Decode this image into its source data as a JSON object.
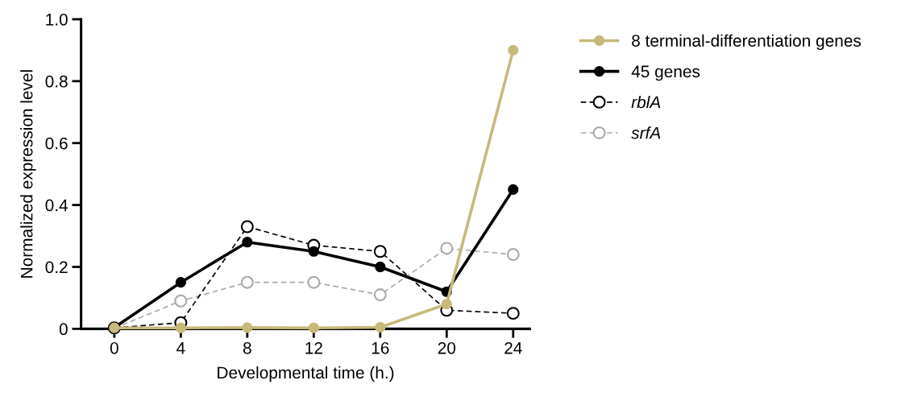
{
  "chart_data": {
    "type": "line",
    "xlabel": "Developmental time (h.)",
    "ylabel": "Normalized expression level",
    "x": [
      0,
      4,
      8,
      12,
      16,
      20,
      24
    ],
    "series": [
      {
        "name": "8 terminal-differentiation genes",
        "color": "#c8b97a",
        "values": [
          0.003,
          0.003,
          0.004,
          0.003,
          0.005,
          0.08,
          0.9
        ],
        "marker": "circle",
        "line_style": "solid"
      },
      {
        "name": "45 genes",
        "color": "#000000",
        "values": [
          0.004,
          0.15,
          0.28,
          0.25,
          0.2,
          0.12,
          0.45
        ],
        "marker": "circle",
        "line_style": "solid"
      },
      {
        "name": "rblA",
        "color": "#000000",
        "values": [
          0.003,
          0.02,
          0.33,
          0.27,
          0.25,
          0.06,
          0.05
        ],
        "marker": "circle",
        "line_style": "dashed"
      },
      {
        "name": "srfA",
        "color": "#aaaaaa",
        "values": [
          0.002,
          0.09,
          0.15,
          0.15,
          0.11,
          0.26,
          0.24
        ],
        "marker": "circle",
        "line_style": "dashed"
      }
    ],
    "xlim": [
      -2,
      25
    ],
    "xticks": [
      0,
      4,
      8,
      12,
      16,
      20,
      24
    ],
    "ylim": [
      0,
      1.0
    ],
    "yticks": [
      0,
      0.2,
      0.4,
      0.6,
      0.8,
      {
        "value": 1.0,
        "label": "1.0"
      }
    ],
    "grid": false,
    "legend": "right"
  }
}
